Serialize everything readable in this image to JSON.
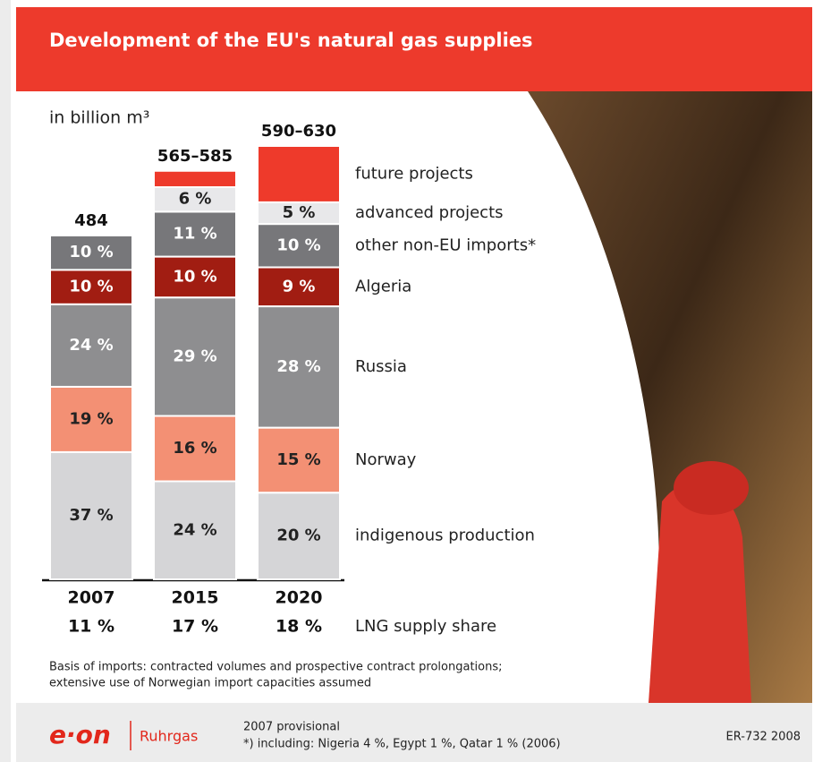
{
  "chart_data": {
    "type": "stacked-bar",
    "title": "Development of the EU's natural gas supplies",
    "unit": "in billion m³",
    "categories": [
      "2007",
      "2015",
      "2020"
    ],
    "totals": {
      "low": [
        484,
        565,
        590
      ],
      "high": [
        484,
        585,
        630
      ],
      "labels": [
        "484",
        "565–585",
        "590–630"
      ]
    },
    "series": [
      {
        "name": "indigenous production",
        "color": "#d5d5d7",
        "values": [
          37,
          24,
          20
        ],
        "value_labels": [
          "37 %",
          "24 %",
          "20 %"
        ]
      },
      {
        "name": "Norway",
        "color": "#f39074",
        "values": [
          19,
          16,
          15
        ],
        "value_labels": [
          "19 %",
          "16 %",
          "15 %"
        ]
      },
      {
        "name": "Russia",
        "color": "#8e8e90",
        "values": [
          24,
          29,
          28
        ],
        "value_labels": [
          "24 %",
          "29 %",
          "28 %"
        ]
      },
      {
        "name": "Algeria",
        "color": "#a11d12",
        "values": [
          10,
          10,
          9
        ],
        "value_labels": [
          "10 %",
          "10 %",
          "9 %"
        ]
      },
      {
        "name": "other non-EU imports*",
        "color": "#77777a",
        "values": [
          10,
          11,
          10
        ],
        "value_labels": [
          "10 %",
          "11 %",
          "10 %"
        ]
      },
      {
        "name": "advanced projects",
        "color": "#e8e8ea",
        "values": [
          null,
          6,
          5
        ],
        "value_labels": [
          null,
          "6 %",
          "5 %"
        ]
      },
      {
        "name": "future projects",
        "color": "#ee3a2b",
        "values": [
          null,
          4,
          13
        ],
        "value_labels": [
          null,
          null,
          null
        ]
      }
    ],
    "lng": {
      "name": "LNG supply share",
      "values": [
        11,
        17,
        18
      ],
      "value_labels": [
        "11 %",
        "17 %",
        "18 %"
      ]
    },
    "notes": [
      "Basis of imports: contracted volumes and prospective contract prolongations;",
      "extensive use of Norwegian import capacities assumed"
    ]
  },
  "footer": {
    "logo": "e·on",
    "brand": "Ruhrgas",
    "lines": [
      "2007 provisional",
      "*) including: Nigeria 4 %, Egypt 1 %, Qatar 1 % (2006)"
    ],
    "code": "ER-732 2008"
  }
}
